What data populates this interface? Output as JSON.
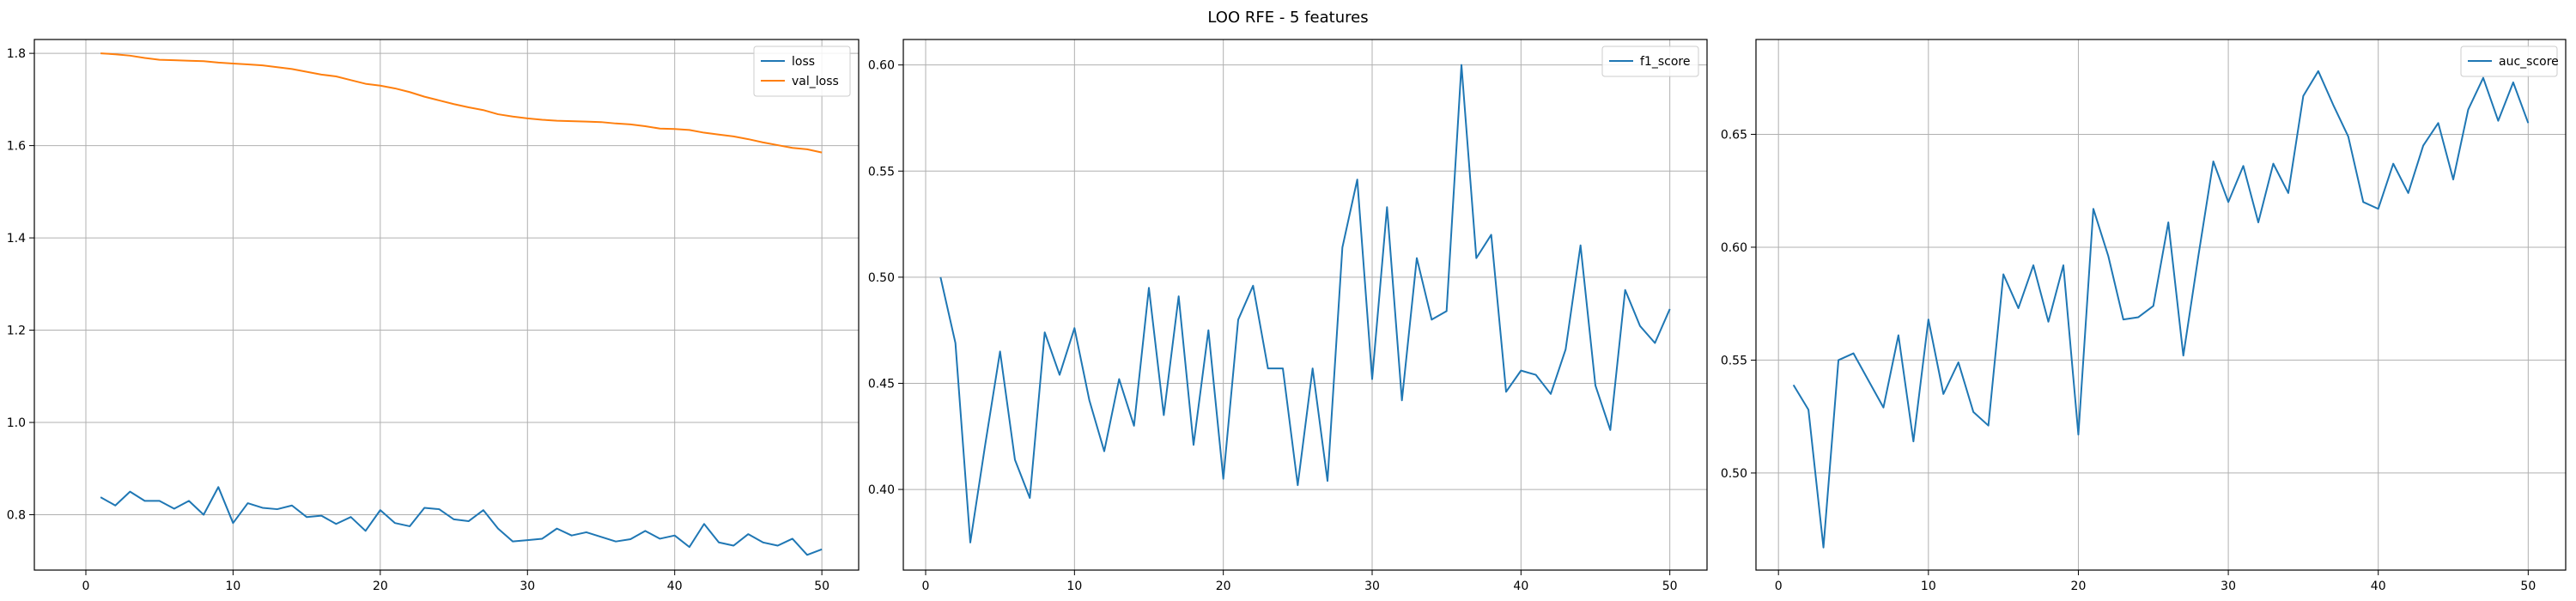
{
  "figure_title": "LOO RFE - 5 features",
  "colors": {
    "blue": "#1f77b4",
    "orange": "#ff7f0e",
    "grid": "#b0b0b0"
  },
  "chart_data": [
    {
      "type": "line",
      "title": "",
      "xlabel": "",
      "ylabel": "",
      "grid": true,
      "legend": "top-right",
      "xlim": [
        -3.5,
        52.5
      ],
      "ylim": [
        0.68,
        1.83
      ],
      "xticks": [
        0,
        10,
        20,
        30,
        40,
        50
      ],
      "xtick_labels": [
        "0",
        "10",
        "20",
        "30",
        "40",
        "50"
      ],
      "yticks": [
        0.8,
        1.0,
        1.2,
        1.4,
        1.6,
        1.8
      ],
      "ytick_labels": [
        "0.8",
        "1.0",
        "1.2",
        "1.4",
        "1.6",
        "1.8"
      ],
      "x": [
        1,
        2,
        3,
        4,
        5,
        6,
        7,
        8,
        9,
        10,
        11,
        12,
        13,
        14,
        15,
        16,
        17,
        18,
        19,
        20,
        21,
        22,
        23,
        24,
        25,
        26,
        27,
        28,
        29,
        30,
        31,
        32,
        33,
        34,
        35,
        36,
        37,
        38,
        39,
        40,
        41,
        42,
        43,
        44,
        45,
        46,
        47,
        48,
        49,
        50
      ],
      "series": [
        {
          "name": "loss",
          "color": "#1f77b4",
          "values": [
            0.838,
            0.82,
            0.85,
            0.83,
            0.83,
            0.813,
            0.83,
            0.8,
            0.86,
            0.782,
            0.825,
            0.815,
            0.812,
            0.82,
            0.795,
            0.798,
            0.78,
            0.795,
            0.765,
            0.81,
            0.782,
            0.775,
            0.815,
            0.812,
            0.79,
            0.786,
            0.81,
            0.77,
            0.742,
            0.745,
            0.748,
            0.77,
            0.755,
            0.762,
            0.752,
            0.742,
            0.747,
            0.765,
            0.748,
            0.755,
            0.73,
            0.78,
            0.74,
            0.733,
            0.758,
            0.74,
            0.733,
            0.748,
            0.713,
            0.725
          ]
        },
        {
          "name": "val_loss",
          "color": "#ff7f0e",
          "values": [
            1.8,
            1.798,
            1.795,
            1.79,
            1.786,
            1.785,
            1.784,
            1.783,
            1.78,
            1.778,
            1.776,
            1.774,
            1.77,
            1.766,
            1.76,
            1.754,
            1.75,
            1.742,
            1.734,
            1.73,
            1.724,
            1.716,
            1.706,
            1.698,
            1.69,
            1.683,
            1.677,
            1.668,
            1.663,
            1.659,
            1.656,
            1.654,
            1.653,
            1.652,
            1.651,
            1.648,
            1.646,
            1.642,
            1.637,
            1.636,
            1.634,
            1.628,
            1.624,
            1.62,
            1.614,
            1.607,
            1.601,
            1.595,
            1.592,
            1.585
          ]
        }
      ]
    },
    {
      "type": "line",
      "title": "",
      "xlabel": "",
      "ylabel": "",
      "grid": true,
      "legend": "top-right",
      "xlim": [
        -1.5,
        52.5
      ],
      "ylim": [
        0.362,
        0.612
      ],
      "xticks": [
        0,
        10,
        20,
        30,
        40,
        50
      ],
      "xtick_labels": [
        "0",
        "10",
        "20",
        "30",
        "40",
        "50"
      ],
      "yticks": [
        0.4,
        0.45,
        0.5,
        0.55,
        0.6
      ],
      "ytick_labels": [
        "0.40",
        "0.45",
        "0.50",
        "0.55",
        "0.60"
      ],
      "x": [
        1,
        2,
        3,
        4,
        5,
        6,
        7,
        8,
        9,
        10,
        11,
        12,
        13,
        14,
        15,
        16,
        17,
        18,
        19,
        20,
        21,
        22,
        23,
        24,
        25,
        26,
        27,
        28,
        29,
        30,
        31,
        32,
        33,
        34,
        35,
        36,
        37,
        38,
        39,
        40,
        41,
        42,
        43,
        44,
        45,
        46,
        47,
        48,
        49,
        50
      ],
      "series": [
        {
          "name": "f1_score",
          "color": "#1f77b4",
          "values": [
            0.5,
            0.469,
            0.375,
            0.421,
            0.465,
            0.414,
            0.396,
            0.474,
            0.454,
            0.476,
            0.442,
            0.418,
            0.452,
            0.43,
            0.495,
            0.435,
            0.491,
            0.421,
            0.475,
            0.405,
            0.48,
            0.496,
            0.457,
            0.457,
            0.402,
            0.457,
            0.404,
            0.514,
            0.546,
            0.452,
            0.533,
            0.442,
            0.509,
            0.48,
            0.484,
            0.6,
            0.509,
            0.52,
            0.446,
            0.456,
            0.454,
            0.445,
            0.466,
            0.515,
            0.449,
            0.428,
            0.494,
            0.477,
            0.469,
            0.485
          ]
        }
      ]
    },
    {
      "type": "line",
      "title": "",
      "xlabel": "",
      "ylabel": "",
      "grid": true,
      "legend": "top-right",
      "xlim": [
        -1.5,
        52.5
      ],
      "ylim": [
        0.457,
        0.692
      ],
      "xticks": [
        0,
        10,
        20,
        30,
        40,
        50
      ],
      "xtick_labels": [
        "0",
        "10",
        "20",
        "30",
        "40",
        "50"
      ],
      "yticks": [
        0.5,
        0.55,
        0.6,
        0.65
      ],
      "ytick_labels": [
        "0.50",
        "0.55",
        "0.60",
        "0.65"
      ],
      "x": [
        1,
        2,
        3,
        4,
        5,
        6,
        7,
        8,
        9,
        10,
        11,
        12,
        13,
        14,
        15,
        16,
        17,
        18,
        19,
        20,
        21,
        22,
        23,
        24,
        25,
        26,
        27,
        28,
        29,
        30,
        31,
        32,
        33,
        34,
        35,
        36,
        37,
        38,
        39,
        40,
        41,
        42,
        43,
        44,
        45,
        46,
        47,
        48,
        49,
        50
      ],
      "series": [
        {
          "name": "auc_score",
          "color": "#1f77b4",
          "values": [
            0.539,
            0.528,
            0.467,
            0.55,
            0.553,
            0.541,
            0.529,
            0.561,
            0.514,
            0.568,
            0.535,
            0.549,
            0.527,
            0.521,
            0.588,
            0.573,
            0.592,
            0.567,
            0.592,
            0.517,
            0.617,
            0.596,
            0.568,
            0.569,
            0.574,
            0.611,
            0.552,
            0.596,
            0.638,
            0.62,
            0.636,
            0.611,
            0.637,
            0.624,
            0.667,
            0.678,
            0.663,
            0.649,
            0.62,
            0.617,
            0.637,
            0.624,
            0.645,
            0.655,
            0.63,
            0.661,
            0.675,
            0.656,
            0.673,
            0.655
          ]
        }
      ]
    }
  ]
}
